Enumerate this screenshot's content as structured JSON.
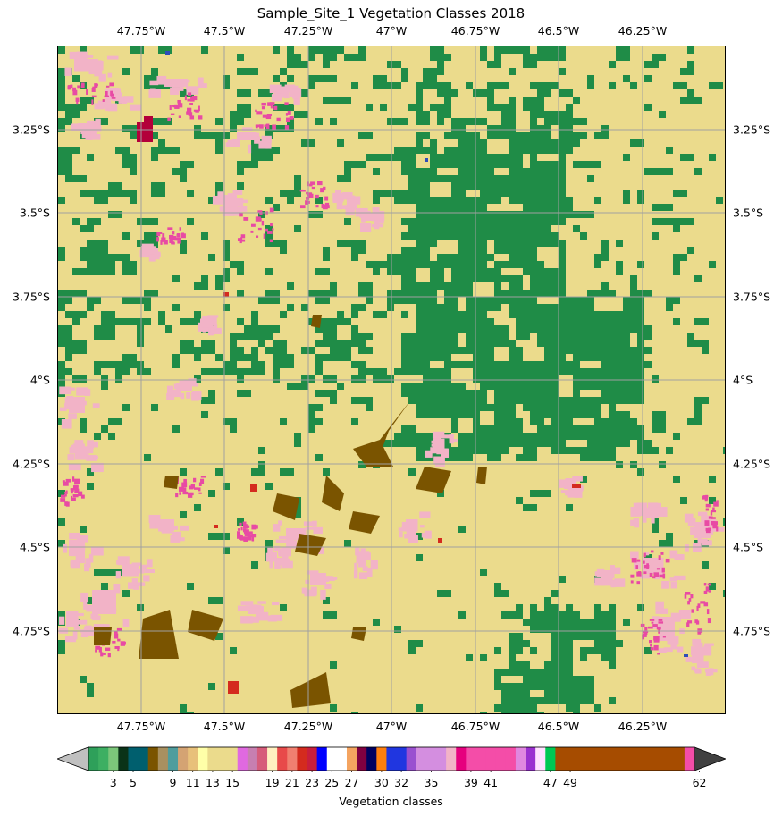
{
  "title": "Sample_Site_1 Vegetation Classes 2018",
  "map": {
    "lon_labels": [
      "47.75°W",
      "47.5°W",
      "47.25°W",
      "47°W",
      "46.75°W",
      "46.5°W",
      "46.25°W"
    ],
    "lat_labels": [
      "3.25°S",
      "3.5°S",
      "3.75°S",
      "4°S",
      "4.25°S",
      "4.5°S",
      "4.75°S"
    ],
    "colors": {
      "forest": "#1f8c47",
      "pasture": "#ebdb8c",
      "agriculture": "#f2b3c7",
      "crop_pink": "#e84aa4",
      "savanna_brown": "#7a5400",
      "urban_red": "#d42b1e",
      "dark_red": "#b3003a",
      "water": "#2f4db8",
      "grid": "#a0a0a0"
    }
  },
  "colorbar": {
    "label": "Vegetation classes",
    "tick_labels": [
      "3",
      "5",
      "9",
      "11",
      "13",
      "15",
      "19",
      "21",
      "23",
      "25",
      "27",
      "30",
      "32",
      "35",
      "39",
      "41",
      "47",
      "49",
      "62"
    ],
    "under_color": "#c0c0c0",
    "over_color": "#404040",
    "segments": [
      {
        "color": "#2ea05a"
      },
      {
        "color": "#3daf62"
      },
      {
        "color": "#7bc67a"
      },
      {
        "color": "#0a3318"
      },
      {
        "color": "#005f6e"
      },
      {
        "color": "#005f6e"
      },
      {
        "color": "#7a5400"
      },
      {
        "color": "#a89060"
      },
      {
        "color": "#4f9d9d"
      },
      {
        "color": "#d4a373"
      },
      {
        "color": "#e8c07a"
      },
      {
        "color": "#ffffa8"
      },
      {
        "color": "#ebdb8c"
      },
      {
        "color": "#ebdb8c"
      },
      {
        "color": "#ebdb8c"
      },
      {
        "color": "#e069e0"
      },
      {
        "color": "#c77fb0"
      },
      {
        "color": "#d65c7a"
      },
      {
        "color": "#fff0c0"
      },
      {
        "color": "#e84a4a"
      },
      {
        "color": "#f08070"
      },
      {
        "color": "#d42b1e"
      },
      {
        "color": "#c81e3c"
      },
      {
        "color": "#0000ff"
      },
      {
        "color": "#ffffff"
      },
      {
        "color": "#ffffff"
      },
      {
        "color": "#f4a460"
      },
      {
        "color": "#800040"
      },
      {
        "color": "#000060"
      },
      {
        "color": "#ff7f0e"
      },
      {
        "color": "#2036e0"
      },
      {
        "color": "#2036e0"
      },
      {
        "color": "#9a50d0"
      },
      {
        "color": "#d48ee0"
      },
      {
        "color": "#d48ee0"
      },
      {
        "color": "#d48ee0"
      },
      {
        "color": "#f2b3c7"
      },
      {
        "color": "#e6007e"
      },
      {
        "color": "#f44da8"
      },
      {
        "color": "#f44da8"
      },
      {
        "color": "#f44da8"
      },
      {
        "color": "#f44da8"
      },
      {
        "color": "#f44da8"
      },
      {
        "color": "#e087e0"
      },
      {
        "color": "#9a30d0"
      },
      {
        "color": "#ffe0ff"
      },
      {
        "color": "#00c853"
      },
      {
        "color": "#a64c00"
      },
      {
        "color": "#a64c00"
      },
      {
        "color": "#a64c00"
      },
      {
        "color": "#a64c00"
      },
      {
        "color": "#a64c00"
      },
      {
        "color": "#a64c00"
      },
      {
        "color": "#a64c00"
      },
      {
        "color": "#a64c00"
      },
      {
        "color": "#a64c00"
      },
      {
        "color": "#a64c00"
      },
      {
        "color": "#a64c00"
      },
      {
        "color": "#a64c00"
      },
      {
        "color": "#a64c00"
      },
      {
        "color": "#f44da8"
      }
    ]
  }
}
